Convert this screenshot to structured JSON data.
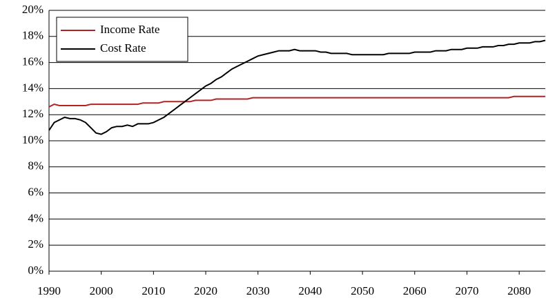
{
  "chart_data": {
    "type": "line",
    "x": [
      1990,
      1991,
      1992,
      1993,
      1994,
      1995,
      1996,
      1997,
      1998,
      1999,
      2000,
      2001,
      2002,
      2003,
      2004,
      2005,
      2006,
      2007,
      2008,
      2009,
      2010,
      2011,
      2012,
      2013,
      2014,
      2015,
      2016,
      2017,
      2018,
      2019,
      2020,
      2021,
      2022,
      2023,
      2024,
      2025,
      2026,
      2027,
      2028,
      2029,
      2030,
      2031,
      2032,
      2033,
      2034,
      2035,
      2036,
      2037,
      2038,
      2039,
      2040,
      2041,
      2042,
      2043,
      2044,
      2045,
      2046,
      2047,
      2048,
      2049,
      2050,
      2051,
      2052,
      2053,
      2054,
      2055,
      2056,
      2057,
      2058,
      2059,
      2060,
      2061,
      2062,
      2063,
      2064,
      2065,
      2066,
      2067,
      2068,
      2069,
      2070,
      2071,
      2072,
      2073,
      2074,
      2075,
      2076,
      2077,
      2078,
      2079,
      2080,
      2081,
      2082,
      2083,
      2084,
      2085
    ],
    "series": [
      {
        "name": "Income Rate",
        "color": "#b22222",
        "values": [
          12.6,
          12.8,
          12.7,
          12.7,
          12.7,
          12.7,
          12.7,
          12.7,
          12.8,
          12.8,
          12.8,
          12.8,
          12.8,
          12.8,
          12.8,
          12.8,
          12.8,
          12.8,
          12.9,
          12.9,
          12.9,
          12.9,
          13.0,
          13.0,
          13.0,
          13.0,
          13.0,
          13.0,
          13.1,
          13.1,
          13.1,
          13.1,
          13.2,
          13.2,
          13.2,
          13.2,
          13.2,
          13.2,
          13.2,
          13.3,
          13.3,
          13.3,
          13.3,
          13.3,
          13.3,
          13.3,
          13.3,
          13.3,
          13.3,
          13.3,
          13.3,
          13.3,
          13.3,
          13.3,
          13.3,
          13.3,
          13.3,
          13.3,
          13.3,
          13.3,
          13.3,
          13.3,
          13.3,
          13.3,
          13.3,
          13.3,
          13.3,
          13.3,
          13.3,
          13.3,
          13.3,
          13.3,
          13.3,
          13.3,
          13.3,
          13.3,
          13.3,
          13.3,
          13.3,
          13.3,
          13.3,
          13.3,
          13.3,
          13.3,
          13.3,
          13.3,
          13.3,
          13.3,
          13.3,
          13.4,
          13.4,
          13.4,
          13.4,
          13.4,
          13.4,
          13.4
        ]
      },
      {
        "name": "Cost Rate",
        "color": "#000000",
        "values": [
          10.8,
          11.4,
          11.6,
          11.8,
          11.7,
          11.7,
          11.6,
          11.4,
          11.0,
          10.6,
          10.5,
          10.7,
          11.0,
          11.1,
          11.1,
          11.2,
          11.1,
          11.3,
          11.3,
          11.3,
          11.4,
          11.6,
          11.8,
          12.1,
          12.4,
          12.7,
          13.0,
          13.3,
          13.6,
          13.9,
          14.2,
          14.4,
          14.7,
          14.9,
          15.2,
          15.5,
          15.7,
          15.9,
          16.1,
          16.3,
          16.5,
          16.6,
          16.7,
          16.8,
          16.9,
          16.9,
          16.9,
          17.0,
          16.9,
          16.9,
          16.9,
          16.9,
          16.8,
          16.8,
          16.7,
          16.7,
          16.7,
          16.7,
          16.6,
          16.6,
          16.6,
          16.6,
          16.6,
          16.6,
          16.6,
          16.7,
          16.7,
          16.7,
          16.7,
          16.7,
          16.8,
          16.8,
          16.8,
          16.8,
          16.9,
          16.9,
          16.9,
          17.0,
          17.0,
          17.0,
          17.1,
          17.1,
          17.1,
          17.2,
          17.2,
          17.2,
          17.3,
          17.3,
          17.4,
          17.4,
          17.5,
          17.5,
          17.5,
          17.6,
          17.6,
          17.7
        ]
      }
    ],
    "xlim": [
      1990,
      2085
    ],
    "xticks": [
      1990,
      2000,
      2010,
      2020,
      2030,
      2040,
      2050,
      2060,
      2070,
      2080
    ],
    "ylim": [
      0,
      20
    ],
    "yticks": [
      {
        "value": 0,
        "label": "0%"
      },
      {
        "value": 2,
        "label": "2%"
      },
      {
        "value": 4,
        "label": "4%"
      },
      {
        "value": 6,
        "label": "6%"
      },
      {
        "value": 8,
        "label": "8%"
      },
      {
        "value": 10,
        "label": "10%"
      },
      {
        "value": 12,
        "label": "12%"
      },
      {
        "value": 14,
        "label": "14%"
      },
      {
        "value": 16,
        "label": "16%"
      },
      {
        "value": 18,
        "label": "18%"
      },
      {
        "value": 20,
        "label": "20%"
      }
    ],
    "grid": true,
    "legend": "upper-left"
  }
}
